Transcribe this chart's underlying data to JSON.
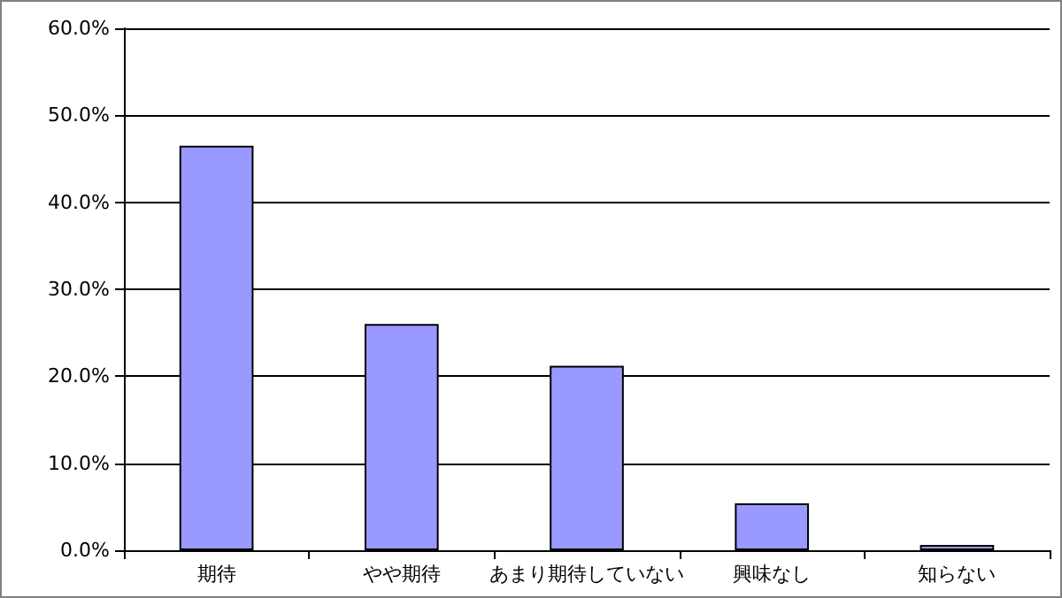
{
  "chart_data": {
    "type": "bar",
    "categories": [
      "期待",
      "やや期待",
      "あまり期待していない",
      "興味なし",
      "知らない"
    ],
    "values": [
      46.5,
      26.0,
      21.2,
      5.4,
      0.6
    ],
    "color": "#9999ff",
    "ylim": [
      0,
      60
    ],
    "yticks": [
      {
        "value": 0,
        "label": "0.0%"
      },
      {
        "value": 10,
        "label": "10.0%"
      },
      {
        "value": 20,
        "label": "20.0%"
      },
      {
        "value": 30,
        "label": "30.0%"
      },
      {
        "value": 40,
        "label": "40.0%"
      },
      {
        "value": 50,
        "label": "50.0%"
      },
      {
        "value": 60,
        "label": "60.0%"
      }
    ],
    "grid": "y"
  }
}
